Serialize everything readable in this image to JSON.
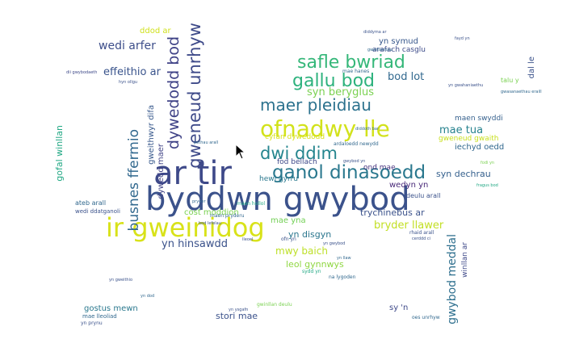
{
  "words": [
    {
      "text": "byddwn gwybod",
      "color": "#3b528b"
    },
    {
      "text": "ar tir",
      "color": "#3e4989"
    },
    {
      "text": "ir gweinidog",
      "color": "#d8e219"
    },
    {
      "text": "ofnadwy lle",
      "color": "#d2e21b"
    },
    {
      "text": "ganol dinasoedd",
      "color": "#2a788e"
    },
    {
      "text": "dwi ddim",
      "color": "#25858e"
    },
    {
      "text": "safle bwriad",
      "color": "#35b779"
    },
    {
      "text": "gallu bod",
      "color": "#2db27d"
    },
    {
      "text": "maer pleidiau",
      "color": "#2c728e"
    },
    {
      "text": "gweneud unrhyw",
      "color": "#3e4a89"
    },
    {
      "text": "dywedodd bod",
      "color": "#404387"
    },
    {
      "text": "wedi arfer",
      "color": "#3d4e8a"
    },
    {
      "text": "effeithio ar",
      "color": "#3a548c"
    },
    {
      "text": "bod lot",
      "color": "#31688e"
    },
    {
      "text": "syn beryglus",
      "color": "#7ad151"
    },
    {
      "text": "mae tua",
      "color": "#26828e"
    },
    {
      "text": "busnes ffermio",
      "color": "#31688e"
    },
    {
      "text": "yn hinsawdd",
      "color": "#3b528b"
    },
    {
      "text": "bryder llawer",
      "color": "#c2df23"
    },
    {
      "text": "mwy baich",
      "color": "#bddf26"
    },
    {
      "text": "leol gynnwys",
      "color": "#90d743"
    },
    {
      "text": "gwybod meddal",
      "color": "#2e6f8e"
    },
    {
      "text": "syn dechrau",
      "color": "#35608d"
    },
    {
      "text": "trychinebus ar",
      "color": "#3b528b"
    },
    {
      "text": "yn disgyn",
      "color": "#2a768e"
    },
    {
      "text": "mae yna",
      "color": "#73d056"
    },
    {
      "text": "cost moddion",
      "color": "#7ad151"
    },
    {
      "text": "gweithwyr difa",
      "color": "#38598c"
    },
    {
      "text": "ddod ar",
      "color": "#d0e11c"
    },
    {
      "text": "yn symud",
      "color": "#38588c"
    },
    {
      "text": "arafach casglu",
      "color": "#3e4c8a"
    },
    {
      "text": "iechyd oedd",
      "color": "#31688e"
    },
    {
      "text": "maen swyddi",
      "color": "#35608d"
    },
    {
      "text": "gweneud gwaith",
      "color": "#c8e020"
    },
    {
      "text": "wedyn yn",
      "color": "#482878"
    },
    {
      "text": "hewl gyrru",
      "color": "#2a788e"
    },
    {
      "text": "fod bellach",
      "color": "#3e4989"
    },
    {
      "text": "ond mae",
      "color": "#46327e"
    },
    {
      "text": "cyfan dywedodd",
      "color": "#d8e219"
    },
    {
      "text": "gofal winllan",
      "color": "#22a884"
    },
    {
      "text": "dywedd maer",
      "color": "#414487"
    },
    {
      "text": "gostus mewn",
      "color": "#2a788e"
    },
    {
      "text": "stori mae",
      "color": "#3b528b"
    },
    {
      "text": "sy 'n",
      "color": "#3e4989"
    },
    {
      "text": "ateb arall",
      "color": "#31688e"
    },
    {
      "text": "wedi ddatganoli",
      "color": "#3b528b"
    },
    {
      "text": "deulu arall",
      "color": "#3b528b"
    },
    {
      "text": "dal le",
      "color": "#3b528b"
    },
    {
      "text": "winllan ar",
      "color": "#3e4989"
    },
    {
      "text": "talu y",
      "color": "#7ad151"
    },
    {
      "text": "mae hanes",
      "color": "#31688e"
    },
    {
      "text": "maen hollol",
      "color": "#22a884"
    },
    {
      "text": "maen pryderu",
      "color": "#31688e"
    },
    {
      "text": "ardaloedd newydd",
      "color": "#31688e"
    },
    {
      "text": "ofn yn",
      "color": "#3b528b"
    },
    {
      "text": "mae lleoliad",
      "color": "#31688e"
    },
    {
      "text": "yn gwybod",
      "color": "#3b528b"
    },
    {
      "text": "sydd yn",
      "color": "#22a884"
    },
    {
      "text": "na lygoden",
      "color": "#31688e"
    },
    {
      "text": "gwinllan deulu",
      "color": "#7ad151"
    },
    {
      "text": "rhaid arall",
      "color": "#3b528b"
    },
    {
      "text": "cerddd ci",
      "color": "#3b528b"
    },
    {
      "text": "dii gwybodaeth",
      "color": "#3e4989"
    },
    {
      "text": "hyn ollgu",
      "color": "#3b528b"
    },
    {
      "text": "bod lefelau",
      "color": "#3b528b"
    },
    {
      "text": "gwaitiannau",
      "color": "#31688e"
    },
    {
      "text": "pethau arall",
      "color": "#31688e"
    },
    {
      "text": "diddoth bar",
      "color": "#31688e"
    },
    {
      "text": "gwasanaethau eraill",
      "color": "#31688e"
    },
    {
      "text": "fragus bod",
      "color": "#22a884"
    },
    {
      "text": "oes unrhyw",
      "color": "#31688e"
    },
    {
      "text": "yn prynu",
      "color": "#3b528b"
    },
    {
      "text": "yn gweithio",
      "color": "#3b528b"
    },
    {
      "text": "fayd yn",
      "color": "#3b528b"
    },
    {
      "text": "diddyma ar",
      "color": "#3b528b"
    },
    {
      "text": "yn gwahaniaethu",
      "color": "#3b528b"
    },
    {
      "text": "yn dod",
      "color": "#31688e"
    },
    {
      "text": "lleoel",
      "color": "#3b528b"
    },
    {
      "text": "pryder",
      "color": "#31688e"
    },
    {
      "text": "yn ysgafn",
      "color": "#3b528b"
    },
    {
      "text": "fodi yn",
      "color": "#7ad151"
    },
    {
      "text": "yn llaw",
      "color": "#31688e"
    },
    {
      "text": "gwybod yn",
      "color": "#3b528b"
    }
  ]
}
